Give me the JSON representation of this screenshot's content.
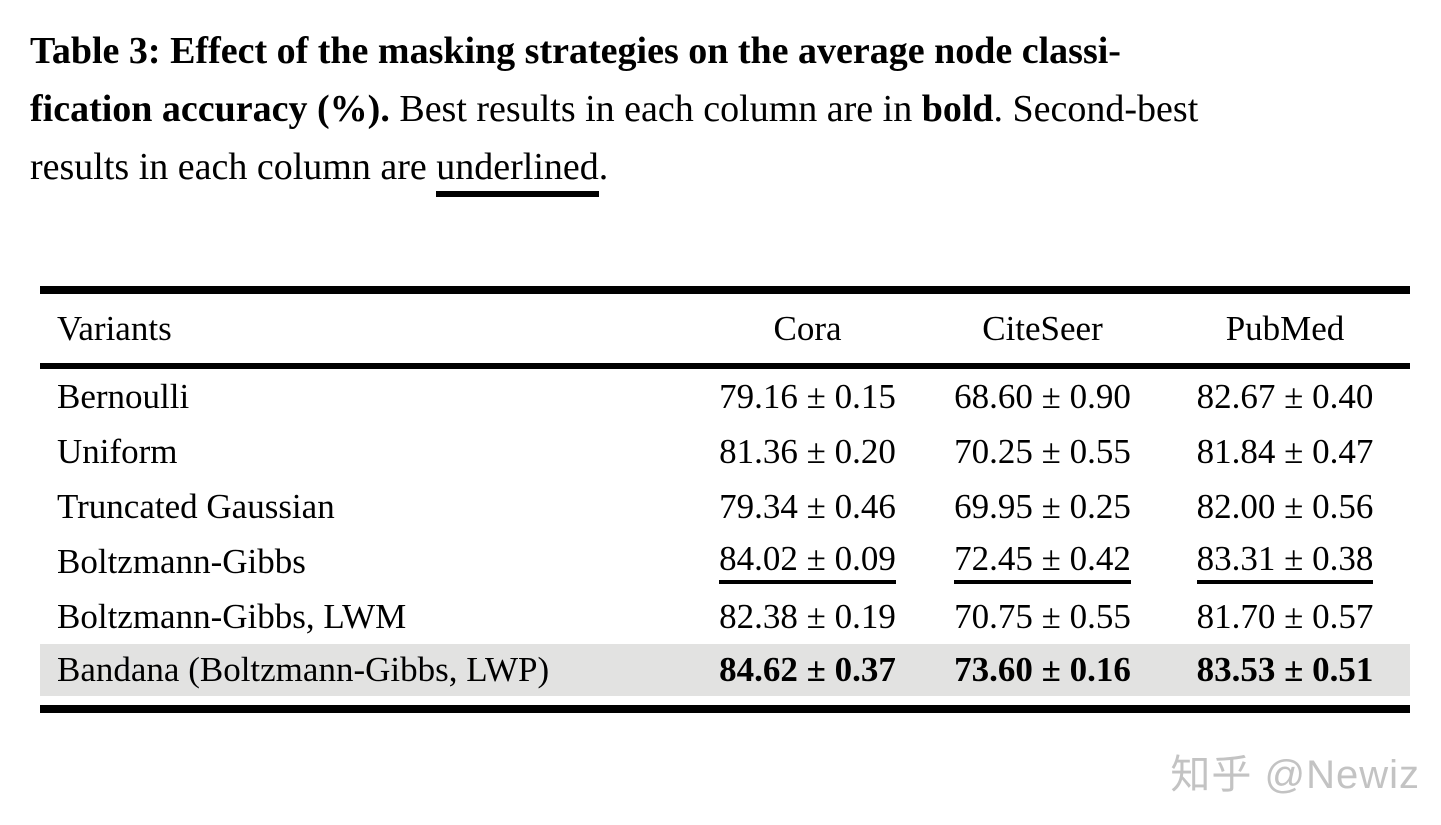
{
  "caption": {
    "line1_bold": "Table 3: Effect of the masking strategies on the average node classi-",
    "line2_bold": "fication accuracy (%).",
    "line2_normal_a": "Best results in each column are in",
    "line2_bold_word": "bold",
    "line2_normal_b": ". Second-best",
    "line3_normal_a": "results in each column are",
    "line3_underlined": "underlined",
    "line3_normal_b": "."
  },
  "table": {
    "columns": [
      "Variants",
      "Cora",
      "CiteSeer",
      "PubMed"
    ],
    "rows": [
      {
        "label": "Bernoulli",
        "values": [
          "79.16 ± 0.15",
          "68.60 ± 0.90",
          "82.67 ± 0.40"
        ]
      },
      {
        "label": "Uniform",
        "values": [
          "81.36 ± 0.20",
          "70.25 ± 0.55",
          "81.84 ± 0.47"
        ]
      },
      {
        "label": "Truncated Gaussian",
        "values": [
          "79.34 ± 0.46",
          "69.95 ± 0.25",
          "82.00 ± 0.56"
        ]
      },
      {
        "label": "Boltzmann-Gibbs",
        "values": [
          "84.02 ± 0.09",
          "72.45 ± 0.42",
          "83.31 ± 0.38"
        ],
        "emphasis": "underline-second-best"
      },
      {
        "label": "Boltzmann-Gibbs, LWM",
        "values": [
          "82.38 ± 0.19",
          "70.75 ± 0.55",
          "81.70 ± 0.57"
        ]
      },
      {
        "label": "Bandana (Boltzmann-Gibbs, LWP)",
        "values": [
          "84.62 ± 0.37",
          "73.60 ± 0.16",
          "83.53 ± 0.51"
        ],
        "emphasis": "bold-best",
        "highlighted": true
      }
    ],
    "highlight_color": "#e2e2e1"
  },
  "watermark": {
    "text": "知乎 @Newiz",
    "color": "#c3c3c3"
  }
}
